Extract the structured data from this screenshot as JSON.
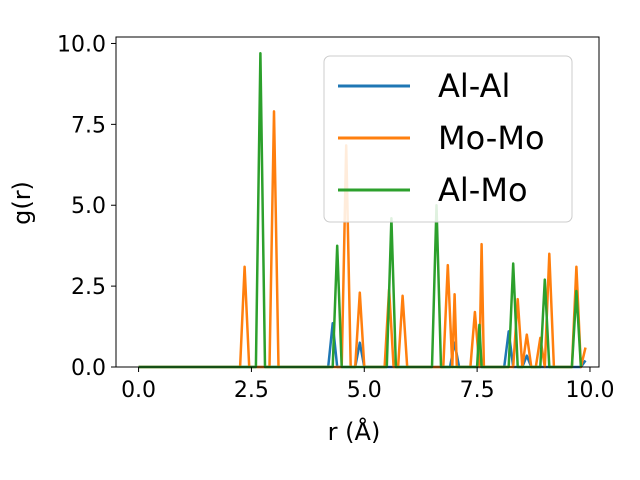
{
  "chart_data": {
    "type": "line",
    "title": "",
    "xlabel": "r (Å)",
    "ylabel": "g(r)",
    "xlim": [
      -0.5,
      10.2
    ],
    "ylim": [
      0,
      10.2
    ],
    "xticks": [
      "0.0",
      "2.5",
      "5.0",
      "7.5",
      "10.0"
    ],
    "xtick_values": [
      0,
      2.5,
      5,
      7.5,
      10
    ],
    "yticks": [
      "0.0",
      "2.5",
      "5.0",
      "7.5",
      "10.0"
    ],
    "ytick_values": [
      0,
      2.5,
      5,
      7.5,
      10
    ],
    "grid": false,
    "legend_position": "upper-right",
    "series": [
      {
        "name": "Al-Al",
        "color": "#1f77b4",
        "x": [
          0,
          4.2,
          4.3,
          4.4,
          4.5,
          4.8,
          4.9,
          5.0,
          6.9,
          7.0,
          7.1,
          8.1,
          8.2,
          8.3,
          8.5,
          8.6,
          8.7,
          9.8,
          9.9
        ],
        "y": [
          0,
          0,
          1.35,
          0,
          0,
          0,
          0.75,
          0,
          0,
          0.75,
          0,
          0,
          1.1,
          0,
          0,
          0.35,
          0,
          0,
          0.2
        ]
      },
      {
        "name": "Mo-Mo",
        "color": "#ff7f0e",
        "x": [
          0,
          2.25,
          2.35,
          2.45,
          2.9,
          3.0,
          3.1,
          4.5,
          4.6,
          4.7,
          4.8,
          4.9,
          5.0,
          5.45,
          5.55,
          5.65,
          5.75,
          5.85,
          5.95,
          6.75,
          6.85,
          6.95,
          7.0,
          7.05,
          7.35,
          7.45,
          7.55,
          7.6,
          7.65,
          8.3,
          8.4,
          8.5,
          8.6,
          8.7,
          8.8,
          8.9,
          9.0,
          9.1,
          9.2,
          9.6,
          9.7,
          9.8,
          9.9
        ],
        "y": [
          0,
          0,
          3.1,
          0,
          0,
          7.9,
          0,
          0,
          6.85,
          0,
          0,
          2.3,
          0,
          0,
          2.4,
          0,
          0,
          2.2,
          0,
          0,
          3.15,
          0,
          2.25,
          0,
          0,
          1.7,
          0,
          3.8,
          0,
          0,
          2.1,
          0,
          1.0,
          0,
          0,
          0.9,
          0,
          3.5,
          0,
          0,
          3.1,
          0,
          0.6
        ]
      },
      {
        "name": "Al-Mo",
        "color": "#2ca02c",
        "x": [
          0,
          2.6,
          2.7,
          2.8,
          4.3,
          4.4,
          4.5,
          5.5,
          5.6,
          5.7,
          6.5,
          6.6,
          6.7,
          7.5,
          7.55,
          7.6,
          8.2,
          8.3,
          8.4,
          8.9,
          9.0,
          9.1,
          9.6,
          9.7,
          9.8
        ],
        "y": [
          0,
          0,
          9.7,
          0,
          0,
          3.75,
          0,
          0,
          4.6,
          0,
          0,
          5.0,
          0,
          0,
          1.3,
          0,
          0,
          3.2,
          0,
          0,
          2.7,
          0,
          0,
          2.35,
          0
        ]
      }
    ]
  }
}
